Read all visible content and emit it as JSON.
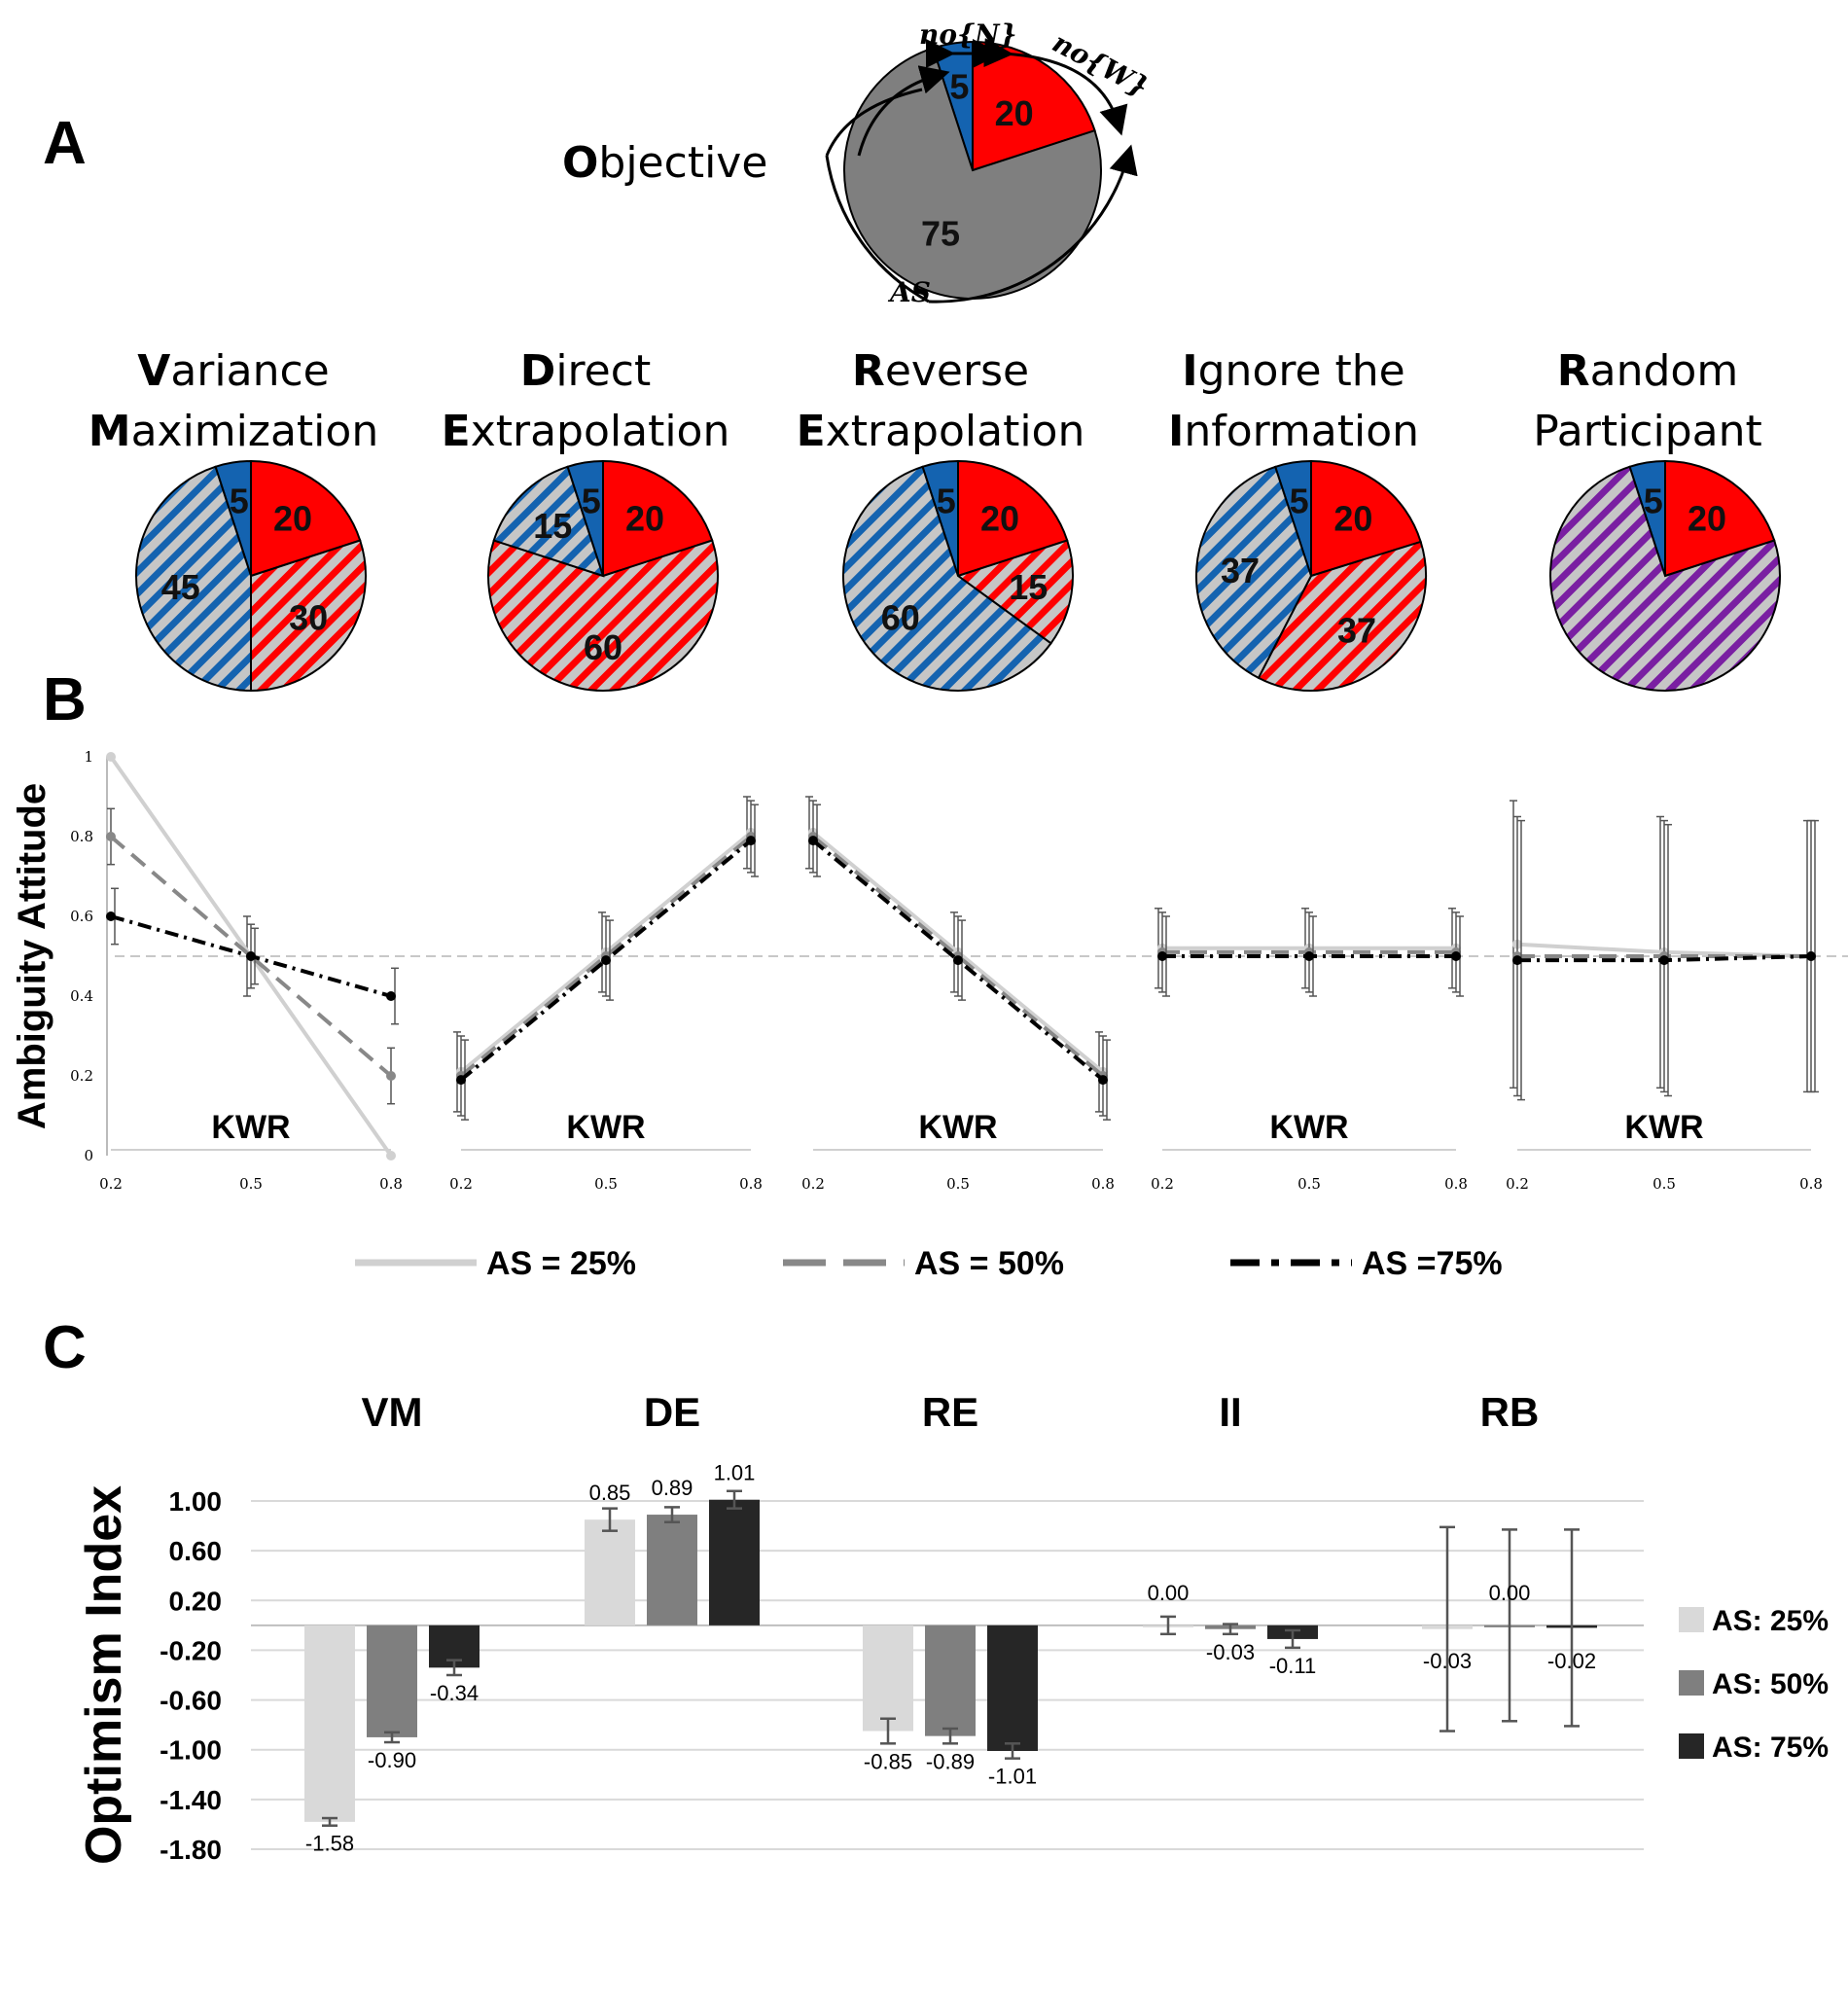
{
  "panel_a": {
    "letter": "A",
    "objective": {
      "title_initial": "O",
      "title_rest": "bjective",
      "slices": [
        {
          "key": "N",
          "value": 5,
          "label": "5",
          "color": "#1463b0",
          "hatch": false
        },
        {
          "key": "W",
          "value": 20,
          "label": "20",
          "color": "#ff0000",
          "hatch": false
        },
        {
          "key": "AS",
          "value": 75,
          "label": "75",
          "color": "#7f7f7f",
          "hatch": false
        }
      ],
      "annotations": {
        "n_n": "no{N}",
        "n_w": "no{W}",
        "as": "AS"
      }
    },
    "strategies": [
      {
        "line1_initial": "V",
        "line1_rest": "ariance",
        "line2_initial": "M",
        "line2_rest": "aximization",
        "slices": [
          {
            "value": 5,
            "label": "5",
            "color": "#1463b0",
            "hatch": false
          },
          {
            "value": 20,
            "label": "20",
            "color": "#ff0000",
            "hatch": false
          },
          {
            "value": 30,
            "label": "30",
            "color": "#ff0000",
            "hatch": true
          },
          {
            "value": 45,
            "label": "45",
            "color": "#1463b0",
            "hatch": true
          }
        ]
      },
      {
        "line1_initial": "D",
        "line1_rest": "irect",
        "line2_initial": "E",
        "line2_rest": "xtrapolation",
        "slices": [
          {
            "value": 5,
            "label": "5",
            "color": "#1463b0",
            "hatch": false
          },
          {
            "value": 20,
            "label": "20",
            "color": "#ff0000",
            "hatch": false
          },
          {
            "value": 60,
            "label": "60",
            "color": "#ff0000",
            "hatch": true
          },
          {
            "value": 15,
            "label": "15",
            "color": "#1463b0",
            "hatch": true
          }
        ]
      },
      {
        "line1_initial": "R",
        "line1_rest": "everse",
        "line2_initial": "E",
        "line2_rest": "xtrapolation",
        "slices": [
          {
            "value": 5,
            "label": "5",
            "color": "#1463b0",
            "hatch": false
          },
          {
            "value": 20,
            "label": "20",
            "color": "#ff0000",
            "hatch": false
          },
          {
            "value": 15,
            "label": "15",
            "color": "#ff0000",
            "hatch": true
          },
          {
            "value": 60,
            "label": "60",
            "color": "#1463b0",
            "hatch": true
          }
        ]
      },
      {
        "line1_initial": "I",
        "line1_rest": "gnore the",
        "line2_initial": "I",
        "line2_rest": "nformation",
        "slices": [
          {
            "value": 5,
            "label": "5",
            "color": "#1463b0",
            "hatch": false
          },
          {
            "value": 20,
            "label": "20",
            "color": "#ff0000",
            "hatch": false
          },
          {
            "value": 37,
            "label": "37",
            "color": "#ff0000",
            "hatch": true
          },
          {
            "value": 37,
            "label": "37",
            "color": "#1463b0",
            "hatch": true
          }
        ]
      },
      {
        "line1_initial": "R",
        "line1_rest": "andom",
        "line2_initial": "",
        "line2_rest": "Participant",
        "slices": [
          {
            "value": 5,
            "label": "5",
            "color": "#1463b0",
            "hatch": false
          },
          {
            "value": 20,
            "label": "20",
            "color": "#ff0000",
            "hatch": false
          },
          {
            "value": 75,
            "label": "",
            "color": "#7a1fa2",
            "hatch": true
          }
        ]
      }
    ]
  },
  "chart_data": [
    {
      "type": "line",
      "panel": "B",
      "ylabel": "Ambiguity Attitude",
      "xlabel": "KWR",
      "x": [
        0.2,
        0.5,
        0.8
      ],
      "x_tick_labels": [
        "0.2",
        "0.5",
        "0.8"
      ],
      "y_tick_labels": [
        "0",
        "0.2",
        "0.4",
        "0.6",
        "0.8",
        "1"
      ],
      "ylim": [
        0,
        1
      ],
      "reference_line": 0.5,
      "legend": [
        "AS = 25%",
        "AS = 50%",
        "AS =75%"
      ],
      "subplots": [
        {
          "name": "VM",
          "series": [
            {
              "name": "AS = 25%",
              "values": [
                1.0,
                0.5,
                0.0
              ],
              "err": [
                0.0,
                0.1,
                0.0
              ]
            },
            {
              "name": "AS = 50%",
              "values": [
                0.8,
                0.5,
                0.2
              ],
              "err": [
                0.07,
                0.08,
                0.07
              ]
            },
            {
              "name": "AS =75%",
              "values": [
                0.6,
                0.5,
                0.4
              ],
              "err": [
                0.07,
                0.07,
                0.07
              ]
            }
          ]
        },
        {
          "name": "DE",
          "series": [
            {
              "name": "AS = 25%",
              "values": [
                0.21,
                0.51,
                0.81
              ],
              "err": [
                0.1,
                0.1,
                0.09
              ]
            },
            {
              "name": "AS = 50%",
              "values": [
                0.2,
                0.5,
                0.8
              ],
              "err": [
                0.1,
                0.1,
                0.09
              ]
            },
            {
              "name": "AS =75%",
              "values": [
                0.19,
                0.49,
                0.79
              ],
              "err": [
                0.1,
                0.1,
                0.09
              ]
            }
          ]
        },
        {
          "name": "RE",
          "series": [
            {
              "name": "AS = 25%",
              "values": [
                0.81,
                0.51,
                0.21
              ],
              "err": [
                0.09,
                0.1,
                0.1
              ]
            },
            {
              "name": "AS = 50%",
              "values": [
                0.8,
                0.5,
                0.2
              ],
              "err": [
                0.09,
                0.1,
                0.1
              ]
            },
            {
              "name": "AS =75%",
              "values": [
                0.79,
                0.49,
                0.19
              ],
              "err": [
                0.09,
                0.1,
                0.1
              ]
            }
          ]
        },
        {
          "name": "II",
          "series": [
            {
              "name": "AS = 25%",
              "values": [
                0.52,
                0.52,
                0.52
              ],
              "err": [
                0.1,
                0.1,
                0.1
              ]
            },
            {
              "name": "AS = 50%",
              "values": [
                0.51,
                0.51,
                0.51
              ],
              "err": [
                0.1,
                0.1,
                0.1
              ]
            },
            {
              "name": "AS =75%",
              "values": [
                0.5,
                0.5,
                0.5
              ],
              "err": [
                0.1,
                0.1,
                0.1
              ]
            }
          ]
        },
        {
          "name": "RB",
          "series": [
            {
              "name": "AS = 25%",
              "values": [
                0.53,
                0.51,
                0.5
              ],
              "err": [
                0.36,
                0.34,
                0.34
              ]
            },
            {
              "name": "AS = 50%",
              "values": [
                0.5,
                0.5,
                0.5
              ],
              "err": [
                0.35,
                0.34,
                0.34
              ]
            },
            {
              "name": "AS =75%",
              "values": [
                0.49,
                0.49,
                0.5
              ],
              "err": [
                0.35,
                0.34,
                0.34
              ]
            }
          ]
        }
      ]
    },
    {
      "type": "bar",
      "panel": "C",
      "ylabel": "Optimism Index",
      "categories": [
        "VM",
        "DE",
        "RE",
        "II",
        "RB"
      ],
      "y_tick_labels": [
        "1.00",
        "0.60",
        "0.20",
        "-0.20",
        "-0.60",
        "-1.00",
        "-1.40",
        "-1.80"
      ],
      "ylim": [
        -1.8,
        1.0
      ],
      "series": [
        {
          "name": "AS: 25%",
          "color": "#d9d9d9",
          "values": [
            -1.58,
            0.85,
            -0.85,
            0.0,
            -0.03
          ],
          "labels": [
            "-1.58",
            "0.85",
            "-0.85",
            "0.00",
            "-0.03"
          ],
          "err": [
            0.03,
            0.09,
            0.1,
            0.07,
            0.82
          ]
        },
        {
          "name": "AS: 50%",
          "color": "#7f7f7f",
          "values": [
            -0.9,
            0.89,
            -0.89,
            -0.03,
            0.0
          ],
          "labels": [
            "-0.90",
            "0.89",
            "-0.89",
            "-0.03",
            "0.00"
          ],
          "err": [
            0.04,
            0.06,
            0.06,
            0.04,
            0.77
          ]
        },
        {
          "name": "AS: 75%",
          "color": "#262626",
          "values": [
            -0.34,
            1.01,
            -1.01,
            -0.11,
            -0.02
          ],
          "labels": [
            "-0.34",
            "1.01",
            "-1.01",
            "-0.11",
            "-0.02"
          ],
          "err": [
            0.06,
            0.07,
            0.06,
            0.07,
            0.79
          ]
        }
      ]
    }
  ],
  "panel_b": {
    "letter": "B"
  },
  "panel_c": {
    "letter": "C"
  }
}
